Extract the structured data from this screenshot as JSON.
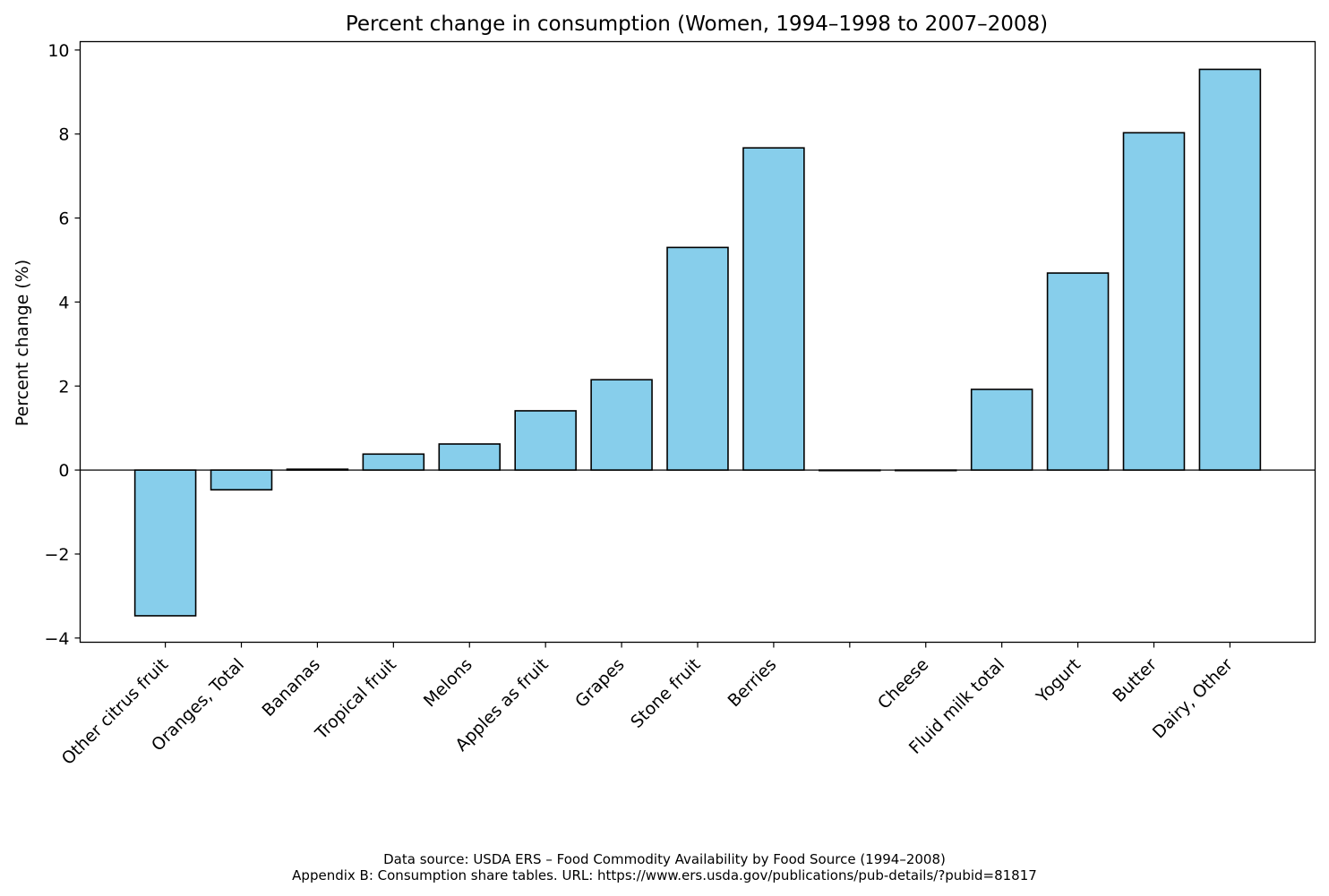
{
  "chart_data": {
    "type": "bar",
    "title": "Percent change in consumption (Women, 1994–1998 to 2007–2008)",
    "xlabel": "",
    "ylabel": "Percent change (%)",
    "ylim": [
      -4.1,
      10.2
    ],
    "yticks": [
      -4,
      -2,
      0,
      2,
      4,
      6,
      8,
      10
    ],
    "ytick_labels": [
      "−4",
      "−2",
      "0",
      "2",
      "4",
      "6",
      "8",
      "10"
    ],
    "categories": [
      "Other citrus fruit",
      "Oranges, Total",
      "Bananas",
      "Tropical fruit",
      "Melons",
      "Apples as fruit",
      "Grapes",
      "Stone fruit",
      "Berries",
      "",
      "Cheese",
      "Fluid milk total",
      "Yogurt",
      "Butter",
      "Dairy, Other"
    ],
    "values": [
      -3.47,
      -0.47,
      0.02,
      0.38,
      0.62,
      1.41,
      2.15,
      5.3,
      7.67,
      0.0,
      0.0,
      1.92,
      4.69,
      8.03,
      9.54
    ],
    "bar_color": "#87ceeb",
    "edge_color": "#000000",
    "zero_line": true,
    "grid": false
  },
  "footer": {
    "line1": "Data source: USDA ERS – Food Commodity Availability by Food Source (1994–2008)",
    "line2": "Appendix B: Consumption share tables. URL: https://www.ers.usda.gov/publications/pub-details/?pubid=81817"
  }
}
